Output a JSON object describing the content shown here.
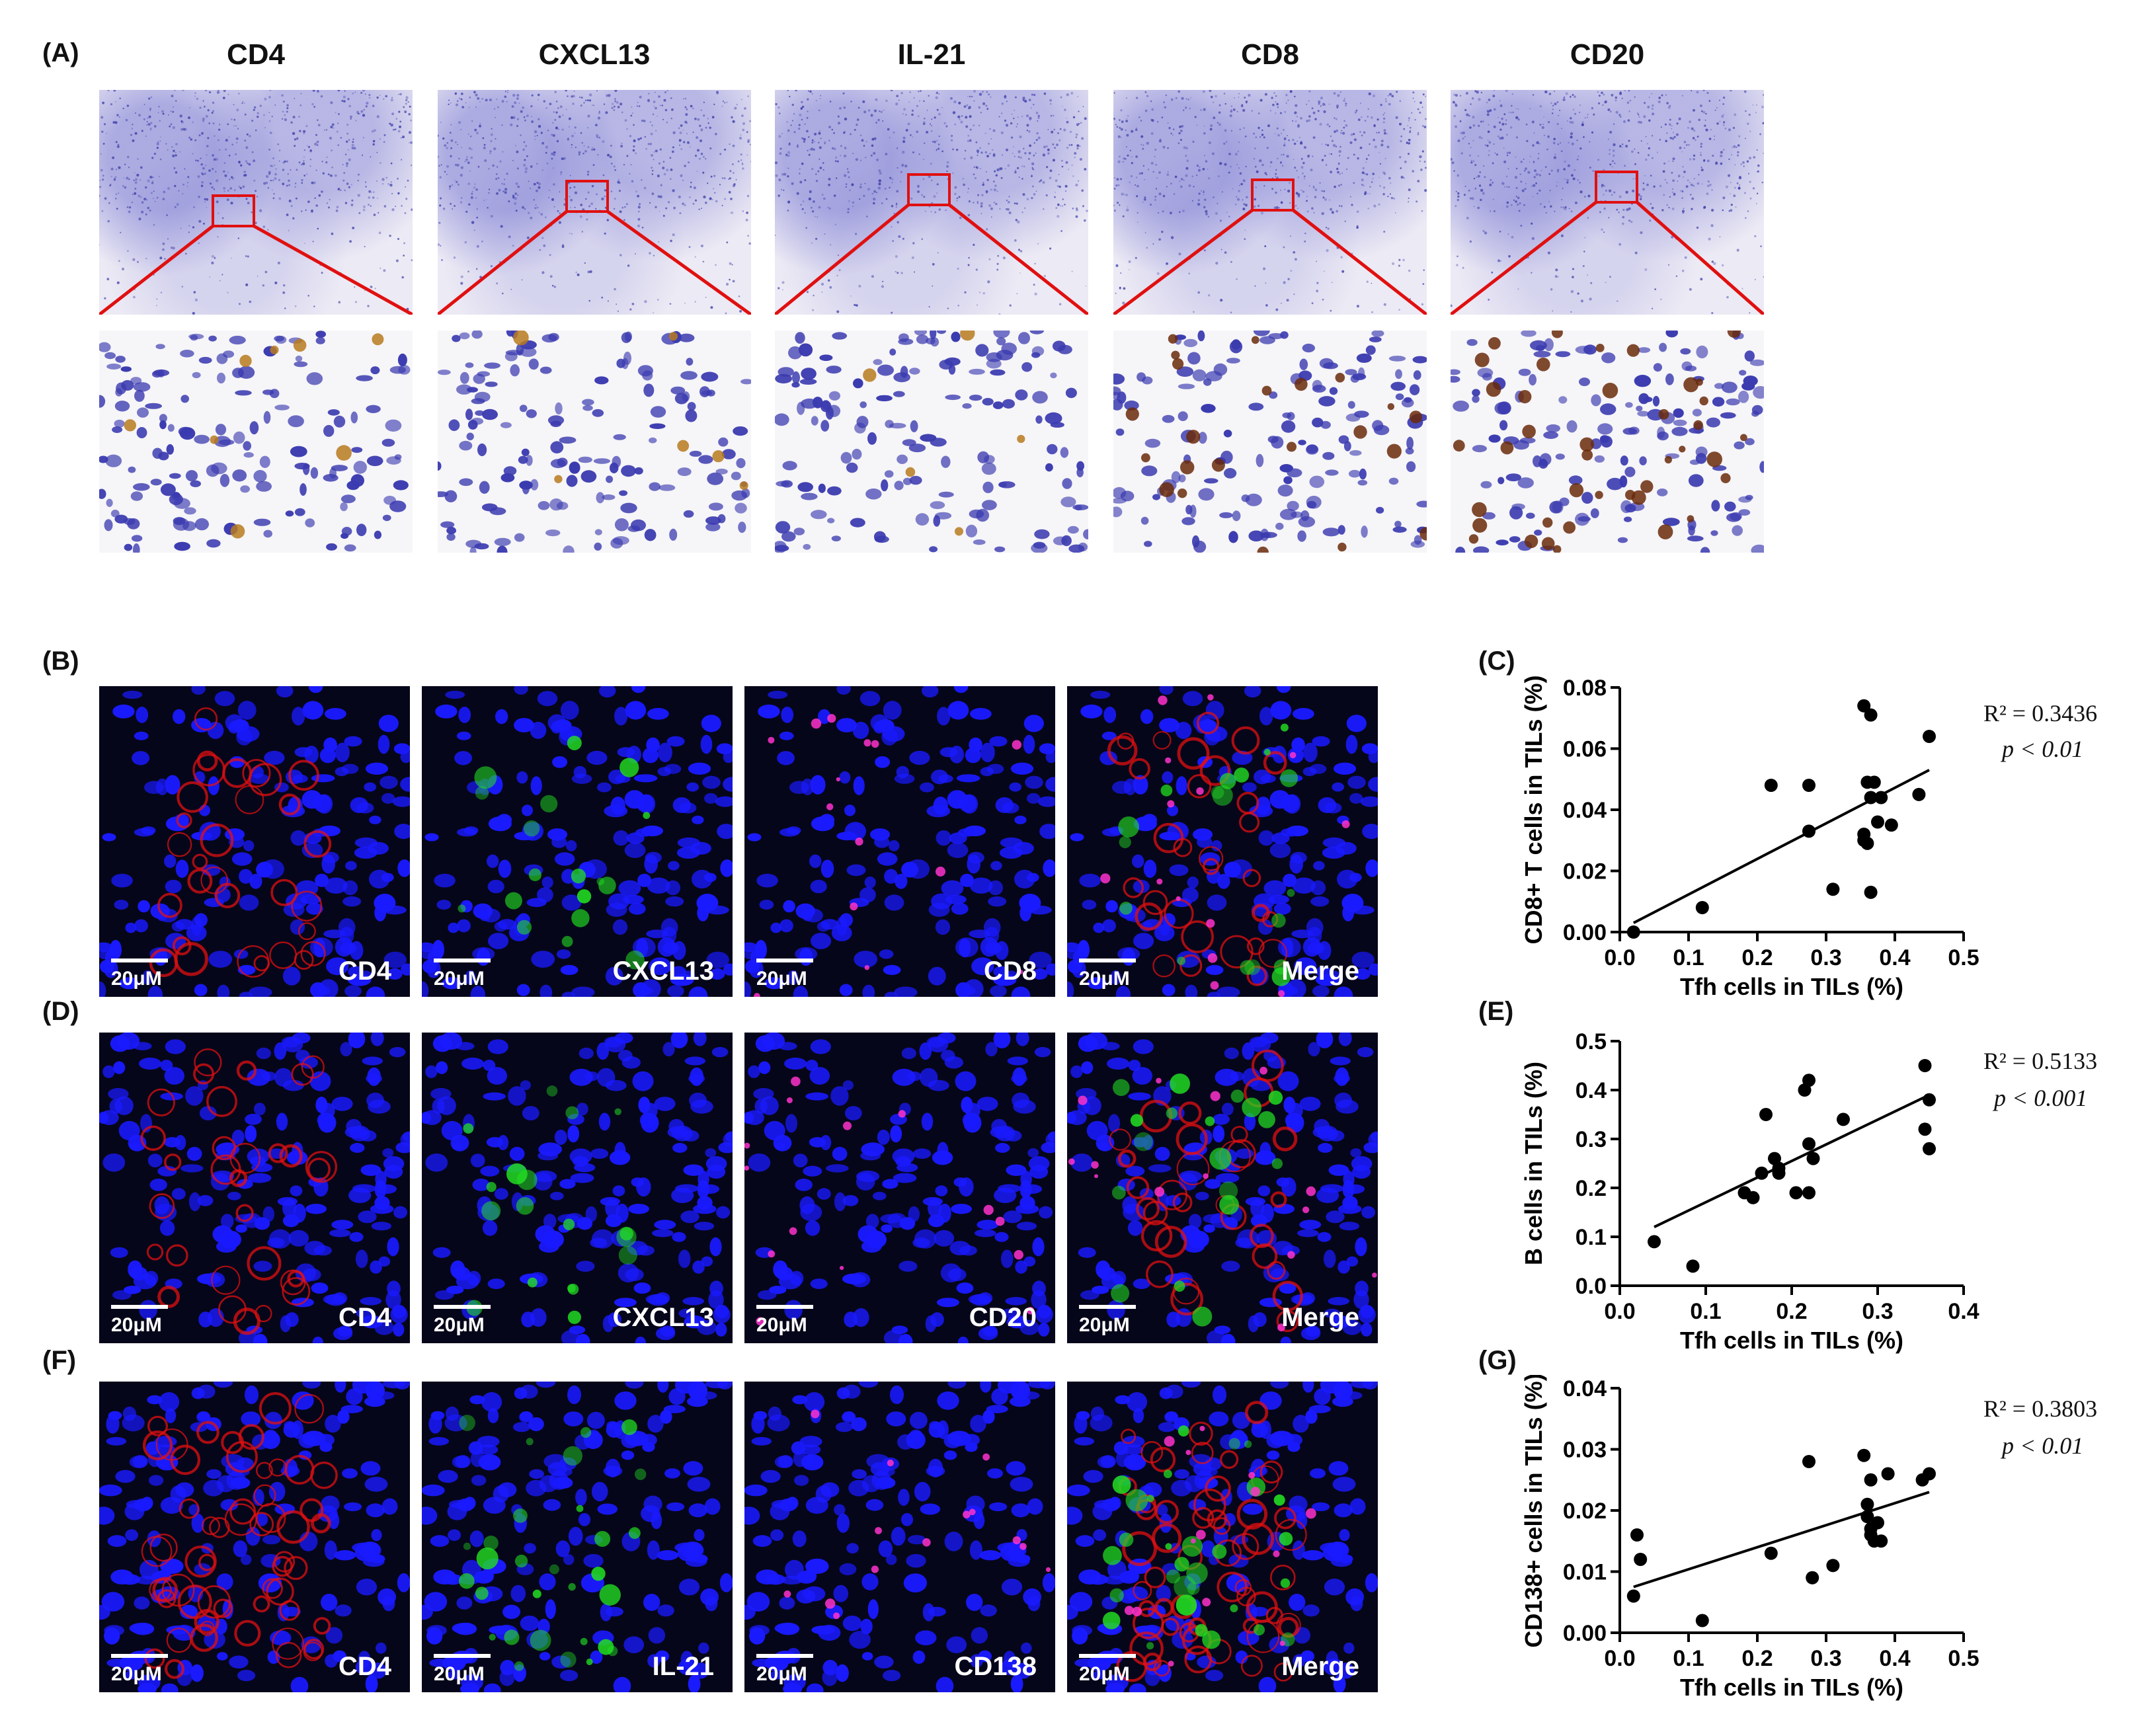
{
  "panel_labels": {
    "A": "(A)",
    "B": "(B)",
    "C": "(C)",
    "D": "(D)",
    "E": "(E)",
    "F": "(F)",
    "G": "(G)"
  },
  "ihc_titles": [
    "CD4",
    "CXCL13",
    "IL-21",
    "CD8",
    "CD20"
  ],
  "fluor_rows": [
    {
      "labels": [
        "CD4",
        "CXCL13",
        "CD8",
        "Merge"
      ]
    },
    {
      "labels": [
        "CD4",
        "CXCL13",
        "CD20",
        "Merge"
      ]
    },
    {
      "labels": [
        "CD4",
        "IL-21",
        "CD138",
        "Merge"
      ]
    }
  ],
  "scale_label": "20μM",
  "colors": {
    "nuclei": "#1a1aff",
    "red_channel": "#e01010",
    "green_channel": "#22dd22",
    "magenta_channel": "#ff33cc",
    "zoom_box": "#e01010"
  },
  "chart_data": [
    {
      "panel": "C",
      "type": "scatter",
      "xlabel": "Tfh cells in TILs (%)",
      "ylabel": "CD8+ T cells in TILs (%)",
      "xlim": [
        0.0,
        0.5
      ],
      "ylim": [
        0.0,
        0.08
      ],
      "xticks": [
        "0.0",
        "0.1",
        "0.2",
        "0.3",
        "0.4",
        "0.5"
      ],
      "yticks": [
        "0.00",
        "0.02",
        "0.04",
        "0.06",
        "0.08"
      ],
      "stat_r2": "R² = 0.3436",
      "stat_p": "p < 0.01",
      "fit": [
        [
          0.02,
          0.003
        ],
        [
          0.45,
          0.053
        ]
      ],
      "points": [
        [
          0.02,
          0.0
        ],
        [
          0.12,
          0.008
        ],
        [
          0.22,
          0.048
        ],
        [
          0.275,
          0.048
        ],
        [
          0.275,
          0.033
        ],
        [
          0.31,
          0.014
        ],
        [
          0.355,
          0.074
        ],
        [
          0.365,
          0.071
        ],
        [
          0.36,
          0.049
        ],
        [
          0.37,
          0.049
        ],
        [
          0.365,
          0.044
        ],
        [
          0.38,
          0.044
        ],
        [
          0.375,
          0.036
        ],
        [
          0.395,
          0.035
        ],
        [
          0.355,
          0.032
        ],
        [
          0.355,
          0.03
        ],
        [
          0.36,
          0.029
        ],
        [
          0.365,
          0.013
        ],
        [
          0.435,
          0.045
        ],
        [
          0.45,
          0.064
        ]
      ]
    },
    {
      "panel": "E",
      "type": "scatter",
      "xlabel": "Tfh cells in TILs (%)",
      "ylabel": "B cells in TILs (%)",
      "xlim": [
        0.0,
        0.4
      ],
      "ylim": [
        0.0,
        0.5
      ],
      "xticks": [
        "0.0",
        "0.1",
        "0.2",
        "0.3",
        "0.4"
      ],
      "yticks": [
        "0.0",
        "0.1",
        "0.2",
        "0.3",
        "0.4",
        "0.5"
      ],
      "stat_r2": "R² = 0.5133",
      "stat_p": "p < 0.001",
      "fit": [
        [
          0.04,
          0.12
        ],
        [
          0.36,
          0.39
        ]
      ],
      "points": [
        [
          0.04,
          0.09
        ],
        [
          0.085,
          0.04
        ],
        [
          0.145,
          0.19
        ],
        [
          0.155,
          0.18
        ],
        [
          0.165,
          0.23
        ],
        [
          0.17,
          0.35
        ],
        [
          0.18,
          0.26
        ],
        [
          0.185,
          0.24
        ],
        [
          0.185,
          0.23
        ],
        [
          0.205,
          0.19
        ],
        [
          0.215,
          0.4
        ],
        [
          0.22,
          0.42
        ],
        [
          0.22,
          0.29
        ],
        [
          0.225,
          0.26
        ],
        [
          0.22,
          0.19
        ],
        [
          0.26,
          0.34
        ],
        [
          0.355,
          0.45
        ],
        [
          0.36,
          0.38
        ],
        [
          0.355,
          0.32
        ],
        [
          0.36,
          0.28
        ]
      ]
    },
    {
      "panel": "G",
      "type": "scatter",
      "xlabel": "Tfh cells in TILs (%)",
      "ylabel": "CD138+ cells in TILs (%)",
      "xlim": [
        0.0,
        0.5
      ],
      "ylim": [
        0.0,
        0.04
      ],
      "xticks": [
        "0.0",
        "0.1",
        "0.2",
        "0.3",
        "0.4",
        "0.5"
      ],
      "yticks": [
        "0.00",
        "0.01",
        "0.02",
        "0.03",
        "0.04"
      ],
      "stat_r2": "R² = 0.3803",
      "stat_p": "p < 0.01",
      "fit": [
        [
          0.02,
          0.0075
        ],
        [
          0.45,
          0.023
        ]
      ],
      "points": [
        [
          0.02,
          0.006
        ],
        [
          0.025,
          0.016
        ],
        [
          0.03,
          0.012
        ],
        [
          0.12,
          0.002
        ],
        [
          0.22,
          0.013
        ],
        [
          0.275,
          0.028
        ],
        [
          0.28,
          0.009
        ],
        [
          0.31,
          0.011
        ],
        [
          0.355,
          0.029
        ],
        [
          0.36,
          0.021
        ],
        [
          0.365,
          0.025
        ],
        [
          0.36,
          0.019
        ],
        [
          0.365,
          0.017
        ],
        [
          0.37,
          0.015
        ],
        [
          0.375,
          0.018
        ],
        [
          0.38,
          0.015
        ],
        [
          0.39,
          0.026
        ],
        [
          0.44,
          0.025
        ],
        [
          0.45,
          0.026
        ],
        [
          0.365,
          0.016
        ]
      ]
    }
  ]
}
